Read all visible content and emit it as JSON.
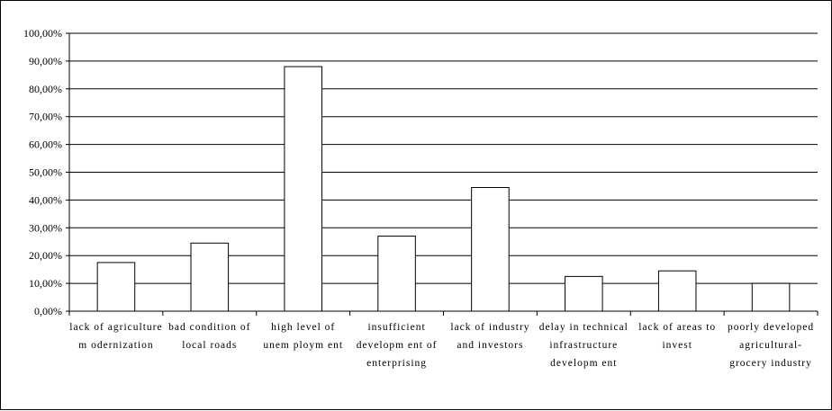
{
  "chart_data": {
    "type": "bar",
    "title": "",
    "xlabel": "",
    "ylabel": "",
    "ylim": [
      0,
      1
    ],
    "grid": true,
    "legend": "none",
    "yticks": [
      "0,00%",
      "10,00%",
      "20,00%",
      "30,00%",
      "40,00%",
      "50,00%",
      "60,00%",
      "70,00%",
      "80,00%",
      "90,00%",
      "100,00%"
    ],
    "categories": [
      [
        "lack of agriculture",
        "m odernization"
      ],
      [
        "bad condition of",
        "local roads"
      ],
      [
        "high level of",
        "unem ploym ent"
      ],
      [
        "insufficient",
        "developm ent of",
        "enterprising"
      ],
      [
        "lack of industry",
        "and investors"
      ],
      [
        "delay in technical",
        "infrastructure",
        "developm ent"
      ],
      [
        "lack of areas to",
        "invest"
      ],
      [
        "poorly developed",
        "agricultural-",
        "grocery industry"
      ]
    ],
    "values": [
      0.175,
      0.245,
      0.88,
      0.27,
      0.445,
      0.125,
      0.145,
      0.1
    ],
    "colors": {
      "bar_fill": "#ffffff",
      "bar_stroke": "#000000",
      "grid": "#000000"
    }
  }
}
